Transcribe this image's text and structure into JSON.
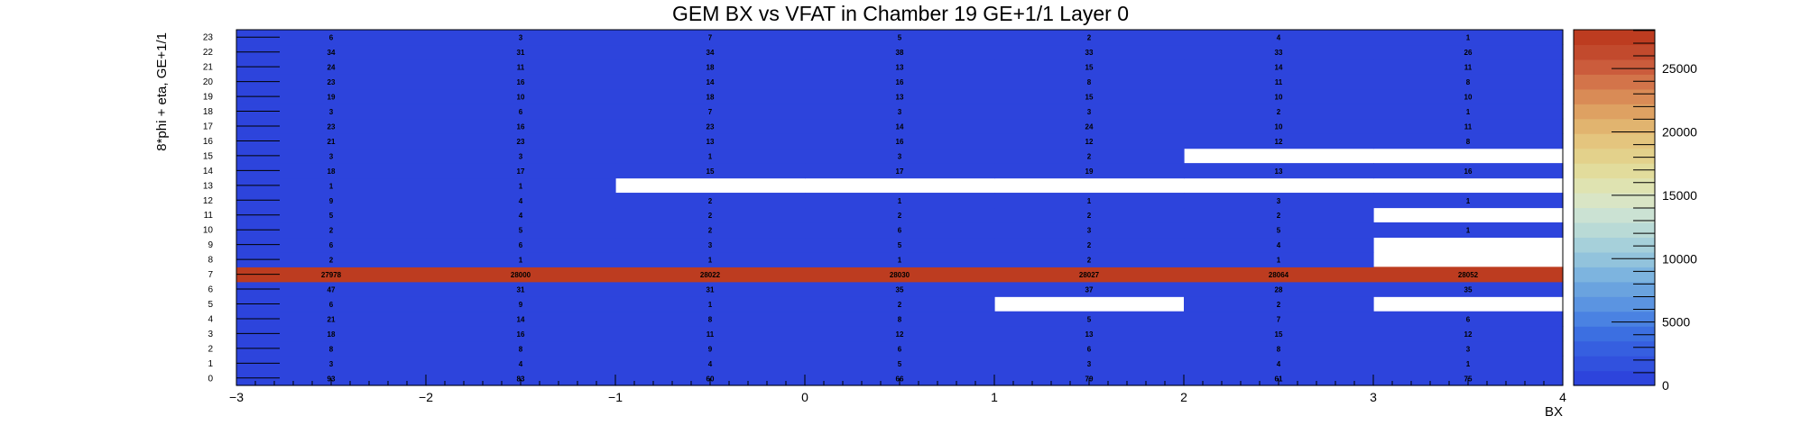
{
  "chart_data": {
    "type": "heatmap",
    "title": "GEM BX vs VFAT in Chamber 19 GE+1/1 Layer 0",
    "xlabel": "BX",
    "ylabel": "8*phi + eta, GE+1/1",
    "xlim": [
      -3,
      4
    ],
    "ylim": [
      0,
      24
    ],
    "x_ticks": [
      "−3",
      "−2",
      "−1",
      "0",
      "1",
      "2",
      "3",
      "4"
    ],
    "y_labels": [
      "0",
      "1",
      "2",
      "3",
      "4",
      "5",
      "6",
      "7",
      "8",
      "9",
      "10",
      "11",
      "12",
      "13",
      "14",
      "15",
      "16",
      "17",
      "18",
      "19",
      "20",
      "21",
      "22",
      "23"
    ],
    "x_bins": [
      -2.5,
      -1.5,
      -0.5,
      0.5,
      1.5,
      2.5,
      3.5
    ],
    "z_range": [
      0,
      28064
    ],
    "colorbar_ticks": [
      "0",
      "5000",
      "10000",
      "15000",
      "20000",
      "25000"
    ],
    "colorbar_tick_values": [
      0,
      5000,
      10000,
      15000,
      20000,
      25000
    ],
    "grid": false,
    "legend": "colorbar right",
    "cells": [
      [
        93,
        83,
        60,
        66,
        79,
        61,
        75
      ],
      [
        3,
        4,
        4,
        5,
        3,
        4,
        1
      ],
      [
        8,
        8,
        9,
        6,
        6,
        8,
        3
      ],
      [
        18,
        16,
        11,
        12,
        13,
        15,
        12
      ],
      [
        21,
        14,
        8,
        8,
        5,
        7,
        6
      ],
      [
        6,
        9,
        1,
        2,
        null,
        2,
        null
      ],
      [
        47,
        31,
        31,
        35,
        37,
        28,
        35
      ],
      [
        27978,
        28000,
        28022,
        28030,
        28027,
        28064,
        28052
      ],
      [
        2,
        1,
        1,
        1,
        2,
        1,
        null
      ],
      [
        6,
        6,
        3,
        5,
        2,
        4,
        null
      ],
      [
        2,
        5,
        2,
        6,
        3,
        5,
        1
      ],
      [
        5,
        4,
        2,
        2,
        2,
        2,
        null
      ],
      [
        9,
        4,
        2,
        1,
        1,
        3,
        1
      ],
      [
        1,
        1,
        null,
        null,
        null,
        null,
        null
      ],
      [
        18,
        17,
        15,
        17,
        19,
        13,
        16
      ],
      [
        3,
        3,
        1,
        3,
        2,
        null,
        null
      ],
      [
        21,
        23,
        13,
        16,
        12,
        12,
        8
      ],
      [
        23,
        16,
        23,
        14,
        24,
        10,
        11
      ],
      [
        3,
        6,
        7,
        3,
        3,
        2,
        1
      ],
      [
        19,
        10,
        18,
        13,
        15,
        10,
        10
      ],
      [
        23,
        16,
        14,
        16,
        8,
        11,
        8
      ],
      [
        24,
        11,
        18,
        13,
        15,
        14,
        11
      ],
      [
        34,
        31,
        34,
        38,
        33,
        33,
        26
      ],
      [
        6,
        3,
        7,
        5,
        2,
        4,
        1
      ]
    ],
    "palette": [
      "#2d44dc",
      "#3151de",
      "#365fe0",
      "#3c6fe1",
      "#4a82e2",
      "#5b94e1",
      "#6aa3df",
      "#7db4df",
      "#92c3dc",
      "#a6d0da",
      "#b9dad6",
      "#cbe2d3",
      "#d9e5c5",
      "#dfe3b1",
      "#e2dc9c",
      "#e3d18b",
      "#e4c57e",
      "#e1b46f",
      "#dea162",
      "#d98b56",
      "#d3744a",
      "#cb5c3c",
      "#c24a2d",
      "#bd3c20"
    ],
    "empty_color": "#ffffff",
    "label_color": "#000000"
  }
}
